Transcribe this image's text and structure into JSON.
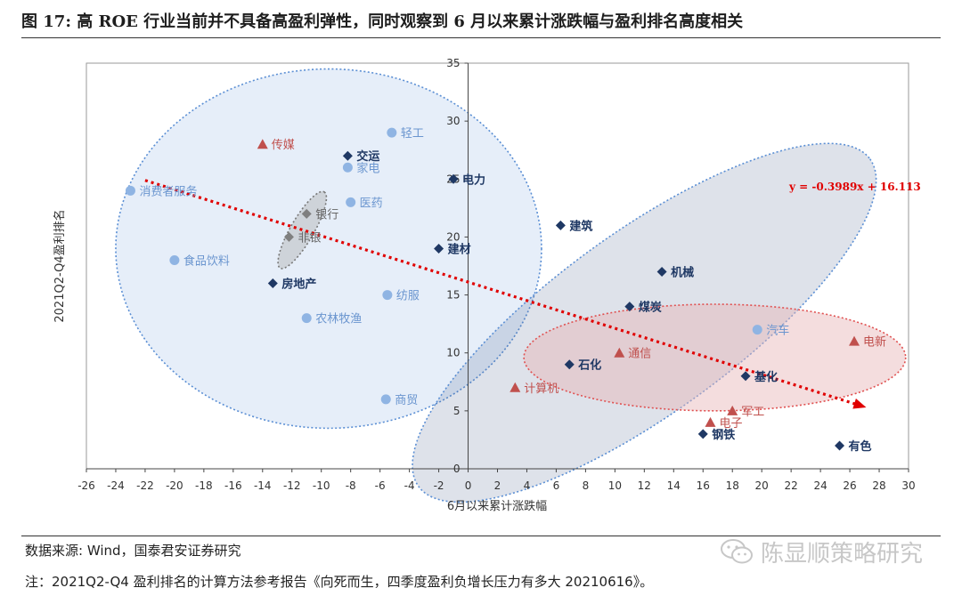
{
  "title": "图 17:  高 ROE 行业当前并不具备高盈利弹性，同时观察到 6 月以来累计涨跌幅与盈利排名高度相关",
  "source": "数据来源:    Wind，国泰君安证券研究",
  "note": "注：2021Q2-Q4 盈利排名的计算方法参考报告《向死而生，四季度盈利负增长压力有多大 20210616》。",
  "watermark": "陈显顺策略研究",
  "colors": {
    "light_blue": "#8fb4e3",
    "dark_navy": "#1f3864",
    "red": "#c0504d",
    "gray": "#7f7f7f",
    "trend": "#e00000"
  },
  "chart_data": {
    "type": "scatter",
    "xlabel": "6月以来累计涨跌幅",
    "ylabel": "2021Q2-Q4盈利排名",
    "xlim": [
      -26,
      30
    ],
    "ylim": [
      0,
      35
    ],
    "x_ticks": [
      -26,
      -24,
      -22,
      -20,
      -18,
      -16,
      -14,
      -12,
      -10,
      -8,
      -6,
      -4,
      -2,
      0,
      2,
      4,
      6,
      8,
      10,
      12,
      14,
      16,
      18,
      20,
      22,
      24,
      26,
      28,
      30
    ],
    "y_ticks": [
      0,
      5,
      10,
      15,
      20,
      25,
      30,
      35
    ],
    "grid": false,
    "legend": "none",
    "trendline": {
      "label": "y = -0.3989x + 16.113",
      "slope": -0.3989,
      "intercept": 16.113,
      "x_range": [
        -22,
        27
      ]
    },
    "points": [
      {
        "name": "轻工",
        "x": -5.2,
        "y": 29,
        "marker": "circle",
        "group": "light_blue"
      },
      {
        "name": "传媒",
        "x": -14,
        "y": 28,
        "marker": "triangle",
        "group": "red"
      },
      {
        "name": "交运",
        "x": -8.2,
        "y": 27,
        "marker": "diamond",
        "group": "dark_navy"
      },
      {
        "name": "家电",
        "x": -8.2,
        "y": 26,
        "marker": "circle",
        "group": "light_blue"
      },
      {
        "name": "电力",
        "x": -1,
        "y": 25,
        "marker": "diamond",
        "group": "dark_navy"
      },
      {
        "name": "消费者服务",
        "x": -23,
        "y": 24,
        "marker": "circle",
        "group": "light_blue"
      },
      {
        "name": "医药",
        "x": -8,
        "y": 23,
        "marker": "circle",
        "group": "light_blue"
      },
      {
        "name": "银行",
        "x": -11,
        "y": 22,
        "marker": "diamond",
        "group": "gray"
      },
      {
        "name": "建筑",
        "x": 6.3,
        "y": 21,
        "marker": "diamond",
        "group": "dark_navy"
      },
      {
        "name": "非银",
        "x": -12.2,
        "y": 20,
        "marker": "diamond",
        "group": "gray"
      },
      {
        "name": "建材",
        "x": -2,
        "y": 19,
        "marker": "diamond",
        "group": "dark_navy"
      },
      {
        "name": "食品饮料",
        "x": -20,
        "y": 18,
        "marker": "circle",
        "group": "light_blue"
      },
      {
        "name": "机械",
        "x": 13.2,
        "y": 17,
        "marker": "diamond",
        "group": "dark_navy"
      },
      {
        "name": "房地产",
        "x": -13.3,
        "y": 16,
        "marker": "diamond",
        "group": "dark_navy"
      },
      {
        "name": "纺服",
        "x": -5.5,
        "y": 15,
        "marker": "circle",
        "group": "light_blue"
      },
      {
        "name": "煤炭",
        "x": 11,
        "y": 14,
        "marker": "diamond",
        "group": "dark_navy"
      },
      {
        "name": "农林牧渔",
        "x": -11,
        "y": 13,
        "marker": "circle",
        "group": "light_blue"
      },
      {
        "name": "汽车",
        "x": 19.7,
        "y": 12,
        "marker": "circle",
        "group": "light_blue"
      },
      {
        "name": "电新",
        "x": 26.3,
        "y": 11,
        "marker": "triangle",
        "group": "red"
      },
      {
        "name": "通信",
        "x": 10.3,
        "y": 10,
        "marker": "triangle",
        "group": "red"
      },
      {
        "name": "石化",
        "x": 6.9,
        "y": 9,
        "marker": "diamond",
        "group": "dark_navy"
      },
      {
        "name": "基化",
        "x": 18.9,
        "y": 8,
        "marker": "diamond",
        "group": "dark_navy"
      },
      {
        "name": "计算机",
        "x": 3.2,
        "y": 7,
        "marker": "triangle",
        "group": "red"
      },
      {
        "name": "商贸",
        "x": -5.6,
        "y": 6,
        "marker": "circle",
        "group": "light_blue"
      },
      {
        "name": "军工",
        "x": 18,
        "y": 5,
        "marker": "triangle",
        "group": "red"
      },
      {
        "name": "电子",
        "x": 16.5,
        "y": 4,
        "marker": "triangle",
        "group": "red"
      },
      {
        "name": "钢铁",
        "x": 16,
        "y": 3,
        "marker": "diamond",
        "group": "dark_navy"
      },
      {
        "name": "有色",
        "x": 25.3,
        "y": 2,
        "marker": "diamond",
        "group": "dark_navy"
      }
    ],
    "cluster_ellipses": [
      {
        "group": "light_blue",
        "center": [
          -9.5,
          19
        ],
        "rx": 14.5,
        "ry": 15.5,
        "angle": 0,
        "fill": "rgba(189,211,238,0.38)",
        "stroke": "#5b8fd4"
      },
      {
        "group": "dark_navy",
        "center": [
          12,
          12.6
        ],
        "rx": 19,
        "ry": 7.8,
        "angle": -36,
        "fill": "rgba(70,95,140,0.18)",
        "stroke": "#5b8fd4"
      },
      {
        "group": "red",
        "center": [
          16.8,
          9.6
        ],
        "rx": 13,
        "ry": 4.6,
        "angle": 0,
        "fill": "rgba(230,180,182,0.45)",
        "stroke": "#e05050"
      },
      {
        "group": "gray",
        "center": [
          -11.3,
          20.6
        ],
        "rx": 3,
        "ry": 1,
        "angle": -60,
        "fill": "rgba(170,170,170,0.4)",
        "stroke": "#777777"
      }
    ]
  }
}
